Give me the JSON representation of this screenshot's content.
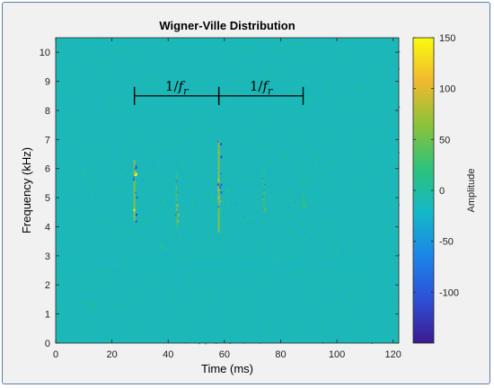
{
  "chart_data": {
    "type": "heatmap",
    "title": "Wigner-Ville Distribution",
    "xlabel": "Time (ms)",
    "ylabel": "Frequency (kHz)",
    "xlim": [
      0,
      122
    ],
    "ylim": [
      0,
      10.5
    ],
    "xticks": [
      "0",
      "20",
      "40",
      "60",
      "80",
      "100",
      "120"
    ],
    "yticks": [
      "0",
      "1",
      "2",
      "3",
      "4",
      "5",
      "6",
      "7",
      "8",
      "9",
      "10"
    ],
    "colorbar": {
      "label": "Amplitude",
      "range": [
        -150,
        150
      ],
      "ticks": [
        "-100",
        "-50",
        "0",
        "50",
        "100",
        "150"
      ],
      "colormap": [
        "#3d1a8f",
        "#2d4fd6",
        "#1b86e8",
        "#14b8c8",
        "#2dc27b",
        "#8cc23a",
        "#f0b92e",
        "#f9fb0e"
      ]
    },
    "background_value": 0,
    "background_color": "#1cb7b9",
    "features": [
      {
        "t_ms": 28,
        "f_lo_khz": 4.2,
        "f_hi_khz": 6.3,
        "peak": 150
      },
      {
        "t_ms": 43,
        "f_lo_khz": 4.0,
        "f_hi_khz": 5.8,
        "peak": 80
      },
      {
        "t_ms": 58,
        "f_lo_khz": 3.8,
        "f_hi_khz": 7.0,
        "peak": 150
      },
      {
        "t_ms": 74,
        "f_lo_khz": 4.5,
        "f_hi_khz": 5.8,
        "peak": 60
      },
      {
        "t_ms": 88,
        "f_lo_khz": 4.6,
        "f_hi_khz": 5.6,
        "peak": 40
      }
    ],
    "annotations": [
      {
        "text": "1/f",
        "sub": "r",
        "t_start_ms": 28,
        "t_end_ms": 58,
        "f_khz": 8.5
      },
      {
        "text": "1/f",
        "sub": "r",
        "t_start_ms": 58,
        "t_end_ms": 88,
        "f_khz": 8.5
      }
    ]
  }
}
